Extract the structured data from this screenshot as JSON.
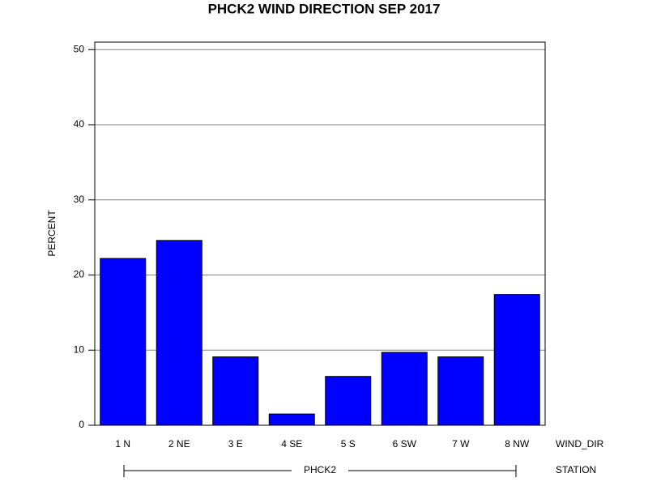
{
  "chart_data": {
    "type": "bar",
    "title": "PHCK2 WIND DIRECTION SEP 2017",
    "y_label": "PERCENT",
    "x_label": "WIND_DIR",
    "group_label": "STATION",
    "group": "PHCK2",
    "categories": [
      "1 N",
      "2 NE",
      "3 E",
      "4 SE",
      "5 S",
      "6 SW",
      "7 W",
      "8 NW"
    ],
    "values": [
      22.2,
      24.6,
      9.1,
      1.5,
      6.5,
      9.7,
      9.1,
      17.4
    ],
    "color": "#0000ff",
    "ylim": [
      0,
      51
    ],
    "yticks": [
      0,
      10,
      20,
      30,
      40,
      50
    ],
    "grid": true
  }
}
